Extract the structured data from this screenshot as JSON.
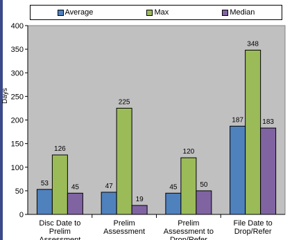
{
  "chart_data": {
    "type": "bar",
    "categories": [
      "Disc Date to Prelim Assessment",
      "Prelim Assessment",
      "Prelim Assessment to Drop/Refer",
      "File Date to Drop/Refer"
    ],
    "series": [
      {
        "name": "Average",
        "values": [
          53,
          47,
          45,
          187
        ],
        "color": "#4f81bd"
      },
      {
        "name": "Max",
        "values": [
          126,
          225,
          120,
          348
        ],
        "color": "#9bbb59"
      },
      {
        "name": "Median",
        "values": [
          45,
          19,
          50,
          183
        ],
        "color": "#8064a2"
      }
    ],
    "ylabel": "Days",
    "ylim": [
      0,
      400
    ],
    "yticks": [
      0,
      50,
      100,
      150,
      200,
      250,
      300,
      350,
      400
    ],
    "grid": false,
    "legend_position": "top",
    "plot_background": "#c0c0c0"
  }
}
